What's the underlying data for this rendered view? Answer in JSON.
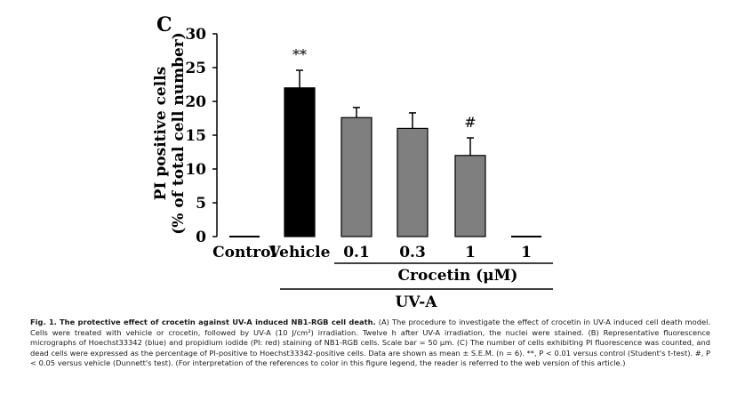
{
  "chart_data": {
    "type": "bar",
    "panel_label": "C",
    "ylabel_line1": "PI positive cells",
    "ylabel_line2": "(% of total cell number)",
    "ylim": [
      0,
      30
    ],
    "yticks": [
      "0",
      "5",
      "10",
      "15",
      "20",
      "25",
      "30"
    ],
    "ytick_values": [
      0,
      5,
      10,
      15,
      20,
      25,
      30
    ],
    "categories": [
      "Control",
      "Vehicle",
      "0.1",
      "0.3",
      "1",
      "1"
    ],
    "values": [
      0,
      22,
      17.6,
      16,
      12,
      0
    ],
    "errors": [
      0,
      2.6,
      1.5,
      2.3,
      2.6,
      0
    ],
    "bar_colors": [
      "#000000",
      "#000000",
      "#7f7f7f",
      "#7f7f7f",
      "#7f7f7f",
      "#7f7f7f"
    ],
    "annotations": [
      "",
      "**",
      "",
      "",
      "#",
      ""
    ],
    "group_crocetin_label": "Crocetin (μM)",
    "group_uva_label": "UV-A"
  },
  "caption": {
    "title": "Fig. 1.",
    "bold_text": "The protective effect of crocetin against UV-A induced NB1-RGB cell death.",
    "body": "(A) The procedure to investigate the effect of crocetin in UV-A induced cell death model. Cells were treated with vehicle or crocetin, followed by UV-A (10 J/cm²) irradiation. Twelve h after UV-A irradiation, the nuclei were stained. (B) Representative fluorescence micrographs of Hoechst33342 (blue) and propidium iodide (PI: red) staining of NB1-RGB cells. Scale bar = 50 μm. (C) The number of cells exhibiting PI fluorescence was counted, and dead cells were expressed as the percentage of PI-positive to Hoechst33342-positive cells. Data are shown as mean ± S.E.M. (n = 6). **, P < 0.01 versus control (Student's t-test). #, P < 0.05 versus vehicle (Dunnett's test). (For interpretation of the references to color in this figure legend, the reader is referred to the web version of this article.)"
  }
}
